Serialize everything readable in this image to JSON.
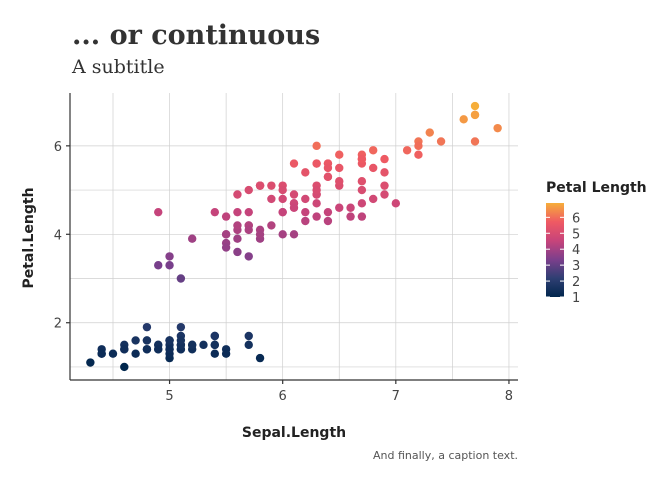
{
  "chart_data": {
    "type": "scatter",
    "title": "... or continuous",
    "subtitle": "A subtitle",
    "caption": "And finally, a caption text.",
    "xlabel": "Sepal.Length",
    "ylabel": "Petal.Length",
    "xlim": [
      4.3,
      7.9
    ],
    "ylim": [
      1.0,
      6.9
    ],
    "xticks": [
      5,
      6,
      7,
      8
    ],
    "yticks": [
      2,
      4,
      6
    ],
    "grid": true,
    "legend": {
      "title": "Petal Length",
      "position": "right",
      "labels": [
        6,
        5,
        4,
        3,
        2,
        1
      ],
      "range": [
        1.0,
        6.9
      ],
      "colors": [
        "#00264d",
        "#2f3f73",
        "#7c3f8c",
        "#c8447a",
        "#ef5a63",
        "#f6ae3a"
      ]
    },
    "color_by": "y",
    "points": [
      [
        5.1,
        1.4
      ],
      [
        4.9,
        1.4
      ],
      [
        4.7,
        1.3
      ],
      [
        4.6,
        1.5
      ],
      [
        5.0,
        1.4
      ],
      [
        5.4,
        1.7
      ],
      [
        4.6,
        1.4
      ],
      [
        5.0,
        1.5
      ],
      [
        4.4,
        1.4
      ],
      [
        4.9,
        1.5
      ],
      [
        5.4,
        1.5
      ],
      [
        4.8,
        1.6
      ],
      [
        4.8,
        1.4
      ],
      [
        4.3,
        1.1
      ],
      [
        5.8,
        1.2
      ],
      [
        5.7,
        1.5
      ],
      [
        5.4,
        1.3
      ],
      [
        5.1,
        1.4
      ],
      [
        5.7,
        1.7
      ],
      [
        5.1,
        1.5
      ],
      [
        5.4,
        1.7
      ],
      [
        5.1,
        1.5
      ],
      [
        4.6,
        1.0
      ],
      [
        5.1,
        1.7
      ],
      [
        4.8,
        1.9
      ],
      [
        5.0,
        1.6
      ],
      [
        5.0,
        1.6
      ],
      [
        5.2,
        1.5
      ],
      [
        5.2,
        1.4
      ],
      [
        4.7,
        1.6
      ],
      [
        4.8,
        1.6
      ],
      [
        5.4,
        1.5
      ],
      [
        5.2,
        1.5
      ],
      [
        5.5,
        1.4
      ],
      [
        4.9,
        1.5
      ],
      [
        5.0,
        1.2
      ],
      [
        5.5,
        1.3
      ],
      [
        4.9,
        1.4
      ],
      [
        4.4,
        1.3
      ],
      [
        5.1,
        1.5
      ],
      [
        5.0,
        1.3
      ],
      [
        4.5,
        1.3
      ],
      [
        4.4,
        1.3
      ],
      [
        5.0,
        1.6
      ],
      [
        5.1,
        1.9
      ],
      [
        4.8,
        1.4
      ],
      [
        5.1,
        1.6
      ],
      [
        4.6,
        1.4
      ],
      [
        5.3,
        1.5
      ],
      [
        5.0,
        1.4
      ],
      [
        7.0,
        4.7
      ],
      [
        6.4,
        4.5
      ],
      [
        6.9,
        4.9
      ],
      [
        5.5,
        4.0
      ],
      [
        6.5,
        4.6
      ],
      [
        5.7,
        4.5
      ],
      [
        6.3,
        4.7
      ],
      [
        4.9,
        3.3
      ],
      [
        6.6,
        4.6
      ],
      [
        5.2,
        3.9
      ],
      [
        5.0,
        3.5
      ],
      [
        5.9,
        4.2
      ],
      [
        6.0,
        4.0
      ],
      [
        6.1,
        4.7
      ],
      [
        5.6,
        3.6
      ],
      [
        6.7,
        4.4
      ],
      [
        5.6,
        4.5
      ],
      [
        5.8,
        4.1
      ],
      [
        6.2,
        4.5
      ],
      [
        5.6,
        3.9
      ],
      [
        5.9,
        4.8
      ],
      [
        6.1,
        4.0
      ],
      [
        6.3,
        4.9
      ],
      [
        6.1,
        4.7
      ],
      [
        6.4,
        4.3
      ],
      [
        6.6,
        4.4
      ],
      [
        6.8,
        4.8
      ],
      [
        6.7,
        5.0
      ],
      [
        6.0,
        4.5
      ],
      [
        5.7,
        3.5
      ],
      [
        5.5,
        3.8
      ],
      [
        5.5,
        3.7
      ],
      [
        5.8,
        3.9
      ],
      [
        6.0,
        5.1
      ],
      [
        5.4,
        4.5
      ],
      [
        6.0,
        4.5
      ],
      [
        6.7,
        4.7
      ],
      [
        6.3,
        4.4
      ],
      [
        5.6,
        4.1
      ],
      [
        5.5,
        4.0
      ],
      [
        5.5,
        4.4
      ],
      [
        6.1,
        4.6
      ],
      [
        5.8,
        4.0
      ],
      [
        5.0,
        3.3
      ],
      [
        5.6,
        4.2
      ],
      [
        5.7,
        4.2
      ],
      [
        5.7,
        4.2
      ],
      [
        6.2,
        4.3
      ],
      [
        5.1,
        3.0
      ],
      [
        5.7,
        4.1
      ],
      [
        6.3,
        6.0
      ],
      [
        5.8,
        5.1
      ],
      [
        7.1,
        5.9
      ],
      [
        6.3,
        5.6
      ],
      [
        6.5,
        5.8
      ],
      [
        7.6,
        6.6
      ],
      [
        4.9,
        4.5
      ],
      [
        7.3,
        6.3
      ],
      [
        6.7,
        5.8
      ],
      [
        7.2,
        6.1
      ],
      [
        6.5,
        5.1
      ],
      [
        6.4,
        5.3
      ],
      [
        6.8,
        5.5
      ],
      [
        5.7,
        5.0
      ],
      [
        5.8,
        5.1
      ],
      [
        6.4,
        5.3
      ],
      [
        6.5,
        5.5
      ],
      [
        7.7,
        6.7
      ],
      [
        7.7,
        6.9
      ],
      [
        6.0,
        5.0
      ],
      [
        6.9,
        5.7
      ],
      [
        5.6,
        4.9
      ],
      [
        7.7,
        6.7
      ],
      [
        6.3,
        4.9
      ],
      [
        6.7,
        5.7
      ],
      [
        7.2,
        6.0
      ],
      [
        6.2,
        4.8
      ],
      [
        6.1,
        4.9
      ],
      [
        6.4,
        5.6
      ],
      [
        7.2,
        5.8
      ],
      [
        7.4,
        6.1
      ],
      [
        7.9,
        6.4
      ],
      [
        6.4,
        5.6
      ],
      [
        6.3,
        5.1
      ],
      [
        6.1,
        5.6
      ],
      [
        7.7,
        6.1
      ],
      [
        6.3,
        5.6
      ],
      [
        6.4,
        5.5
      ],
      [
        6.0,
        4.8
      ],
      [
        6.9,
        5.4
      ],
      [
        6.7,
        5.6
      ],
      [
        6.9,
        5.1
      ],
      [
        5.8,
        5.1
      ],
      [
        6.8,
        5.9
      ],
      [
        6.7,
        5.7
      ],
      [
        6.7,
        5.2
      ],
      [
        6.3,
        5.0
      ],
      [
        6.5,
        5.2
      ],
      [
        6.2,
        5.4
      ],
      [
        5.9,
        5.1
      ]
    ]
  }
}
